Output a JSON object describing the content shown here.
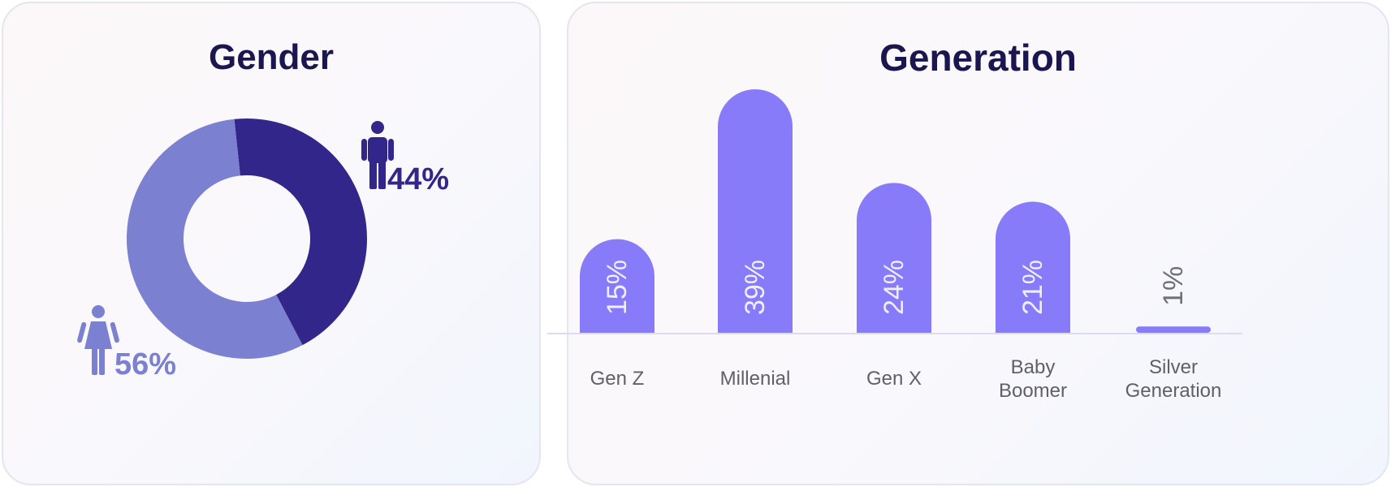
{
  "chart_data": [
    {
      "type": "pie",
      "title": "Gender",
      "slices": [
        {
          "label": "Male",
          "icon": "male-person-icon",
          "value": 44,
          "label_text": "44%",
          "color": "#32268a"
        },
        {
          "label": "Female",
          "icon": "female-person-icon",
          "value": 56,
          "label_text": "56%",
          "color": "#7b80d0"
        }
      ]
    },
    {
      "type": "bar",
      "title": "Generation",
      "categories": [
        "Gen Z",
        "Millenial",
        "Gen X",
        "Baby Boomer",
        "Silver Generation"
      ],
      "values": [
        15,
        39,
        24,
        21,
        1
      ],
      "value_labels": [
        "15%",
        "39%",
        "24%",
        "21%",
        "1%"
      ],
      "category_lines": [
        [
          "Gen Z"
        ],
        [
          "Millenial"
        ],
        [
          "Gen X"
        ],
        [
          "Baby",
          "Boomer"
        ],
        [
          "Silver",
          "Generation"
        ]
      ],
      "bar_color": "#877bfa",
      "grid": false,
      "legend": false
    }
  ]
}
